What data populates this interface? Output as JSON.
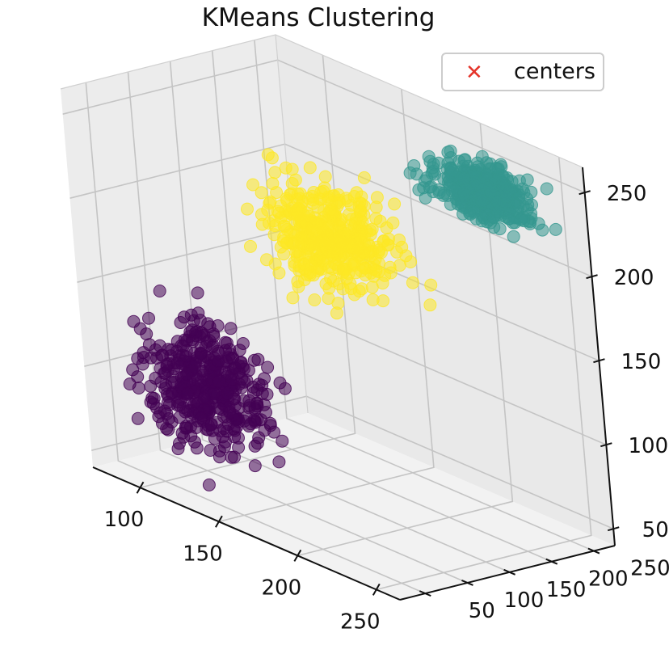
{
  "chart_data": {
    "type": "scatter",
    "projection": "3d",
    "title": "KMeans Clustering",
    "xlabel": "",
    "ylabel": "",
    "zlabel": "",
    "xlim": [
      70,
      265
    ],
    "ylim": [
      20,
      275
    ],
    "zlim": [
      40,
      265
    ],
    "x_ticks": [
      100,
      150,
      200,
      250
    ],
    "y_ticks": [
      50,
      100,
      150,
      200,
      250
    ],
    "z_ticks": [
      50,
      100,
      150,
      200,
      250
    ],
    "grid": true,
    "legend": {
      "position": "top-right",
      "entries": [
        {
          "label": "centers",
          "marker": "x",
          "color": "#e5342a"
        }
      ]
    },
    "clusters": [
      {
        "color": "#440154",
        "x_range": [
          70,
          165
        ],
        "y_range": [
          20,
          130
        ],
        "z_range": [
          50,
          150
        ]
      },
      {
        "color": "#fde725",
        "x_range": [
          105,
          215
        ],
        "y_range": [
          95,
          225
        ],
        "z_range": [
          150,
          240
        ]
      },
      {
        "color": "#35978f",
        "x_range": [
          180,
          260
        ],
        "y_range": [
          200,
          275
        ],
        "z_range": [
          215,
          260
        ]
      }
    ]
  }
}
